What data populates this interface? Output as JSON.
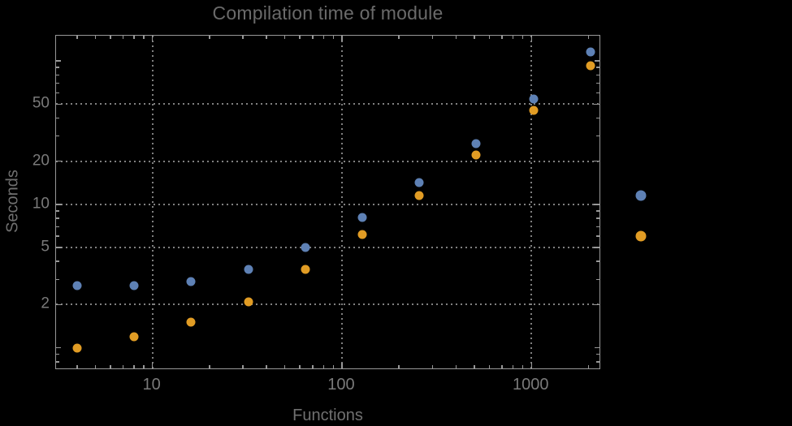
{
  "chart_data": {
    "type": "scatter",
    "title": "Compilation time of module",
    "xlabel": "Functions",
    "ylabel": "Seconds",
    "x_scale": "log",
    "y_scale": "log",
    "xlim": [
      3.1,
      2330
    ],
    "ylim": [
      0.7,
      150
    ],
    "background_color": "#000000",
    "frame_color": "#989898",
    "gridline_color": "#808080",
    "title_color": "#6a6a6a",
    "axis_label_color": "#707070",
    "tick_label_color": "#7a7a7a",
    "grid": "on",
    "gridline_style": "dotted",
    "x_ticks": {
      "values": [
        10,
        100,
        1000
      ],
      "labels": [
        "10",
        "100",
        "1000"
      ]
    },
    "y_ticks": {
      "values": [
        2,
        5,
        10,
        20,
        50
      ],
      "labels": [
        "2",
        "5",
        "10",
        "20",
        "50"
      ]
    },
    "x_minor_ticks": [
      4,
      5,
      6,
      7,
      8,
      9,
      20,
      30,
      40,
      50,
      60,
      70,
      80,
      90,
      200,
      300,
      400,
      500,
      600,
      700,
      800,
      900,
      2000
    ],
    "y_minor_ticks": [
      0.8,
      0.9,
      3,
      4,
      6,
      7,
      8,
      9,
      30,
      40,
      60,
      70,
      80,
      90
    ],
    "y_medium_ticks": [
      1,
      100
    ],
    "x_gridlines": [
      10,
      100,
      1000
    ],
    "y_gridlines": [
      2,
      5,
      10,
      20,
      50
    ],
    "x": [
      4,
      8,
      16,
      32,
      64,
      128,
      256,
      512,
      1024,
      2048
    ],
    "series": [
      {
        "name": "blue-series",
        "color": "#5e81b5",
        "marker": "circle",
        "values": [
          2.7,
          2.7,
          2.9,
          3.5,
          5.0,
          8.1,
          14.2,
          26.5,
          54,
          115
        ]
      },
      {
        "name": "orange-series",
        "color": "#e19c24",
        "marker": "circle",
        "values": [
          1.0,
          1.2,
          1.5,
          2.1,
          3.5,
          6.2,
          11.5,
          22,
          45,
          93
        ]
      }
    ],
    "legend": {
      "position": "outside-right",
      "entries": [
        {
          "name": "blue-series",
          "color": "#5e81b5",
          "label": ""
        },
        {
          "name": "orange-series",
          "color": "#e19c24",
          "label": ""
        }
      ]
    }
  }
}
